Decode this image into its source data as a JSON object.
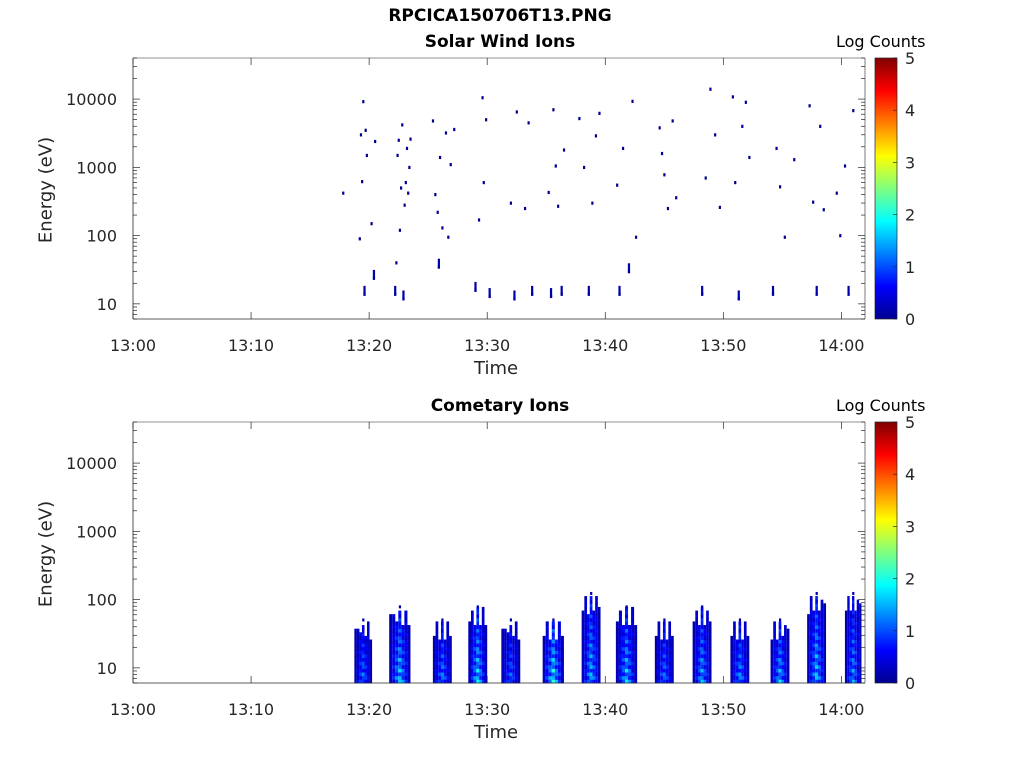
{
  "figure": {
    "title": "RPCICA150706T13.PNG"
  },
  "colorbar": {
    "label": "Log Counts",
    "range": [
      0,
      5
    ],
    "ticks": [
      0,
      1,
      2,
      3,
      4,
      5
    ],
    "colormap": "jet"
  },
  "chart_data": [
    {
      "type": "heatmap",
      "title": "Solar Wind Ions",
      "xlabel": "Time",
      "ylabel": "Energy (eV)",
      "yscale": "log",
      "xlim": [
        "13:00",
        "14:02"
      ],
      "ylim": [
        6,
        40000
      ],
      "xticks": [
        "13:00",
        "13:10",
        "13:20",
        "13:30",
        "13:40",
        "13:50",
        "14:00"
      ],
      "yticks": [
        10,
        100,
        1000,
        10000
      ],
      "x_unit": "minutes after 13:00",
      "points": [
        [
          17.8,
          420
        ],
        [
          19.2,
          90
        ],
        [
          19.3,
          3000
        ],
        [
          19.4,
          620
        ],
        [
          19.5,
          9200
        ],
        [
          19.6,
          14
        ],
        [
          19.7,
          3500
        ],
        [
          19.8,
          1500
        ],
        [
          20.2,
          150
        ],
        [
          20.4,
          24
        ],
        [
          20.5,
          2400
        ],
        [
          22.2,
          14
        ],
        [
          22.3,
          40
        ],
        [
          22.4,
          1500
        ],
        [
          22.5,
          2500
        ],
        [
          22.6,
          120
        ],
        [
          22.7,
          500
        ],
        [
          22.8,
          4200
        ],
        [
          22.9,
          12
        ],
        [
          23.0,
          280
        ],
        [
          23.1,
          600
        ],
        [
          23.2,
          1900
        ],
        [
          23.3,
          420
        ],
        [
          23.4,
          1000
        ],
        [
          23.5,
          2600
        ],
        [
          25.4,
          4800
        ],
        [
          25.6,
          400
        ],
        [
          25.8,
          220
        ],
        [
          25.9,
          35
        ],
        [
          26.0,
          1400
        ],
        [
          26.2,
          130
        ],
        [
          26.5,
          3200
        ],
        [
          26.7,
          95
        ],
        [
          26.9,
          1100
        ],
        [
          27.2,
          3600
        ],
        [
          29.0,
          16
        ],
        [
          29.3,
          170
        ],
        [
          29.6,
          10500
        ],
        [
          29.7,
          600
        ],
        [
          29.9,
          5000
        ],
        [
          30.2,
          13
        ],
        [
          32.0,
          300
        ],
        [
          32.3,
          12
        ],
        [
          32.5,
          6500
        ],
        [
          33.2,
          250
        ],
        [
          33.5,
          4500
        ],
        [
          33.8,
          14
        ],
        [
          35.2,
          430
        ],
        [
          35.4,
          13
        ],
        [
          35.6,
          7000
        ],
        [
          35.8,
          1050
        ],
        [
          36.0,
          270
        ],
        [
          36.3,
          14
        ],
        [
          36.5,
          1800
        ],
        [
          37.8,
          5200
        ],
        [
          38.2,
          1000
        ],
        [
          38.6,
          14
        ],
        [
          38.9,
          300
        ],
        [
          39.2,
          2900
        ],
        [
          39.5,
          6200
        ],
        [
          41.0,
          550
        ],
        [
          41.2,
          14
        ],
        [
          41.5,
          1900
        ],
        [
          42.0,
          30
        ],
        [
          42.3,
          9300
        ],
        [
          42.6,
          95
        ],
        [
          44.6,
          3800
        ],
        [
          44.8,
          1600
        ],
        [
          45.0,
          780
        ],
        [
          45.3,
          250
        ],
        [
          45.7,
          4800
        ],
        [
          46.0,
          360
        ],
        [
          48.2,
          14
        ],
        [
          48.5,
          700
        ],
        [
          48.9,
          14000
        ],
        [
          49.3,
          3000
        ],
        [
          49.7,
          260
        ],
        [
          50.8,
          10800
        ],
        [
          51.0,
          600
        ],
        [
          51.3,
          12
        ],
        [
          51.6,
          4000
        ],
        [
          51.9,
          9000
        ],
        [
          52.2,
          1400
        ],
        [
          54.2,
          14
        ],
        [
          54.5,
          1900
        ],
        [
          54.8,
          520
        ],
        [
          55.2,
          95
        ],
        [
          56.0,
          1300
        ],
        [
          57.3,
          8000
        ],
        [
          57.6,
          310
        ],
        [
          57.9,
          14
        ],
        [
          58.2,
          4000
        ],
        [
          58.5,
          240
        ],
        [
          59.6,
          420
        ],
        [
          59.9,
          100
        ],
        [
          60.3,
          1050
        ],
        [
          60.6,
          14
        ],
        [
          61.0,
          6800
        ]
      ]
    },
    {
      "type": "heatmap",
      "title": "Cometary Ions",
      "xlabel": "Time",
      "ylabel": "Energy (eV)",
      "yscale": "log",
      "xlim": [
        "13:00",
        "14:02"
      ],
      "ylim": [
        6,
        40000
      ],
      "xticks": [
        "13:00",
        "13:10",
        "13:20",
        "13:30",
        "13:40",
        "13:50",
        "14:00"
      ],
      "yticks": [
        10,
        100,
        1000,
        10000
      ],
      "x_unit": "minutes after 13:00",
      "bursts": [
        {
          "t": 19.5,
          "width": 1.5,
          "emax": 45,
          "peak": 1.3
        },
        {
          "t": 22.6,
          "width": 1.8,
          "emax": 70,
          "peak": 1.8
        },
        {
          "t": 26.2,
          "width": 1.6,
          "emax": 45,
          "peak": 1.4
        },
        {
          "t": 29.2,
          "width": 1.6,
          "emax": 70,
          "peak": 1.9
        },
        {
          "t": 32.0,
          "width": 1.6,
          "emax": 45,
          "peak": 1.2
        },
        {
          "t": 35.6,
          "width": 1.8,
          "emax": 45,
          "peak": 2.1
        },
        {
          "t": 38.8,
          "width": 1.6,
          "emax": 110,
          "peak": 1.7
        },
        {
          "t": 41.8,
          "width": 1.8,
          "emax": 70,
          "peak": 1.8
        },
        {
          "t": 45.0,
          "width": 1.6,
          "emax": 45,
          "peak": 1.3
        },
        {
          "t": 48.2,
          "width": 1.6,
          "emax": 70,
          "peak": 1.6
        },
        {
          "t": 51.4,
          "width": 1.6,
          "emax": 45,
          "peak": 1.5
        },
        {
          "t": 54.8,
          "width": 1.6,
          "emax": 45,
          "peak": 1.7
        },
        {
          "t": 57.9,
          "width": 1.6,
          "emax": 110,
          "peak": 1.8
        },
        {
          "t": 61.0,
          "width": 1.4,
          "emax": 110,
          "peak": 1.5
        }
      ]
    }
  ]
}
